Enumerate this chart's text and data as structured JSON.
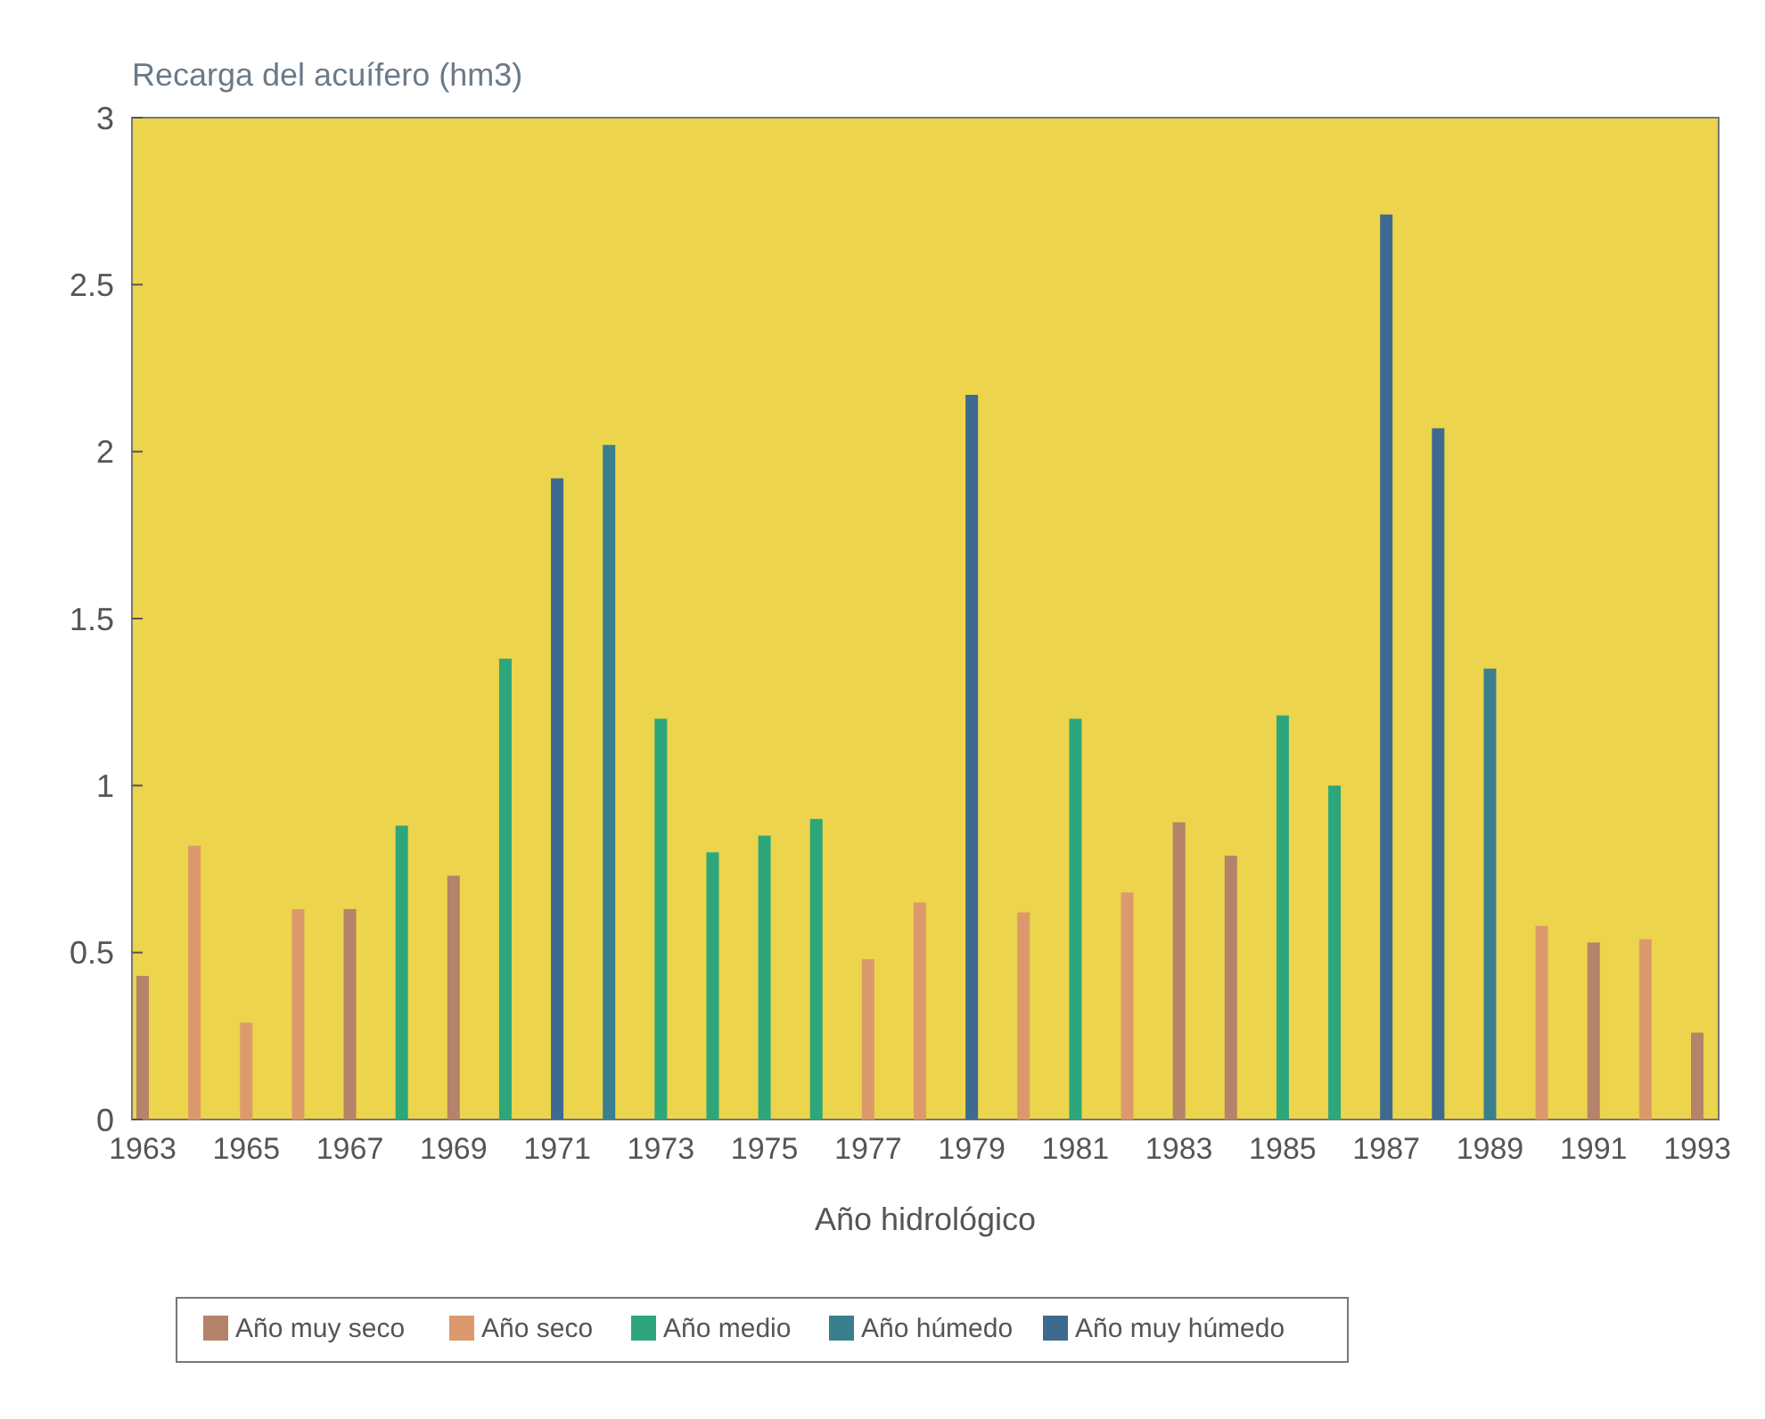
{
  "chart_data": {
    "type": "bar",
    "title": "Recarga del acuífero (hm3)",
    "xlabel": "Año hidrológico",
    "categories": [
      "1963",
      null,
      "1965",
      null,
      "1967",
      null,
      "1969",
      null,
      "1971",
      null,
      "1973",
      null,
      "1975",
      null,
      "1977",
      null,
      "1979",
      null,
      "1981",
      null,
      "1983",
      null,
      "1985",
      null,
      "1987",
      null,
      "1989",
      null,
      "1991",
      null,
      "1993"
    ],
    "series": [
      {
        "name": "Año muy seco",
        "color": "#b3836a",
        "values": [
          0.43,
          null,
          null,
          null,
          0.63,
          null,
          0.73,
          null,
          null,
          null,
          null,
          null,
          null,
          null,
          null,
          null,
          null,
          null,
          null,
          null,
          0.89,
          0.79,
          null,
          null,
          null,
          null,
          null,
          null,
          0.53,
          null,
          0.26
        ]
      },
      {
        "name": "Año seco",
        "color": "#dc9a6c",
        "values": [
          null,
          0.82,
          0.29,
          0.63,
          null,
          null,
          null,
          null,
          null,
          null,
          null,
          null,
          null,
          null,
          0.48,
          0.65,
          null,
          0.62,
          null,
          0.68,
          null,
          null,
          null,
          null,
          null,
          null,
          null,
          0.58,
          null,
          0.54,
          null
        ]
      },
      {
        "name": "Año medio",
        "color": "#2ea67c",
        "values": [
          null,
          null,
          null,
          null,
          null,
          0.88,
          null,
          1.38,
          null,
          null,
          1.2,
          0.8,
          0.85,
          0.9,
          null,
          null,
          null,
          null,
          1.2,
          null,
          null,
          null,
          1.21,
          1.0,
          null,
          null,
          null,
          null,
          null,
          null,
          null
        ]
      },
      {
        "name": "Año húmedo",
        "color": "#3a7f8e",
        "values": [
          null,
          null,
          null,
          null,
          null,
          null,
          null,
          null,
          null,
          2.02,
          null,
          null,
          null,
          null,
          null,
          null,
          null,
          null,
          null,
          null,
          null,
          null,
          null,
          null,
          null,
          null,
          1.35,
          null,
          null,
          null,
          null
        ]
      },
      {
        "name": "Año muy húmedo",
        "color": "#3f6a8f",
        "values": [
          null,
          null,
          null,
          null,
          null,
          null,
          null,
          null,
          1.92,
          null,
          null,
          null,
          null,
          null,
          null,
          null,
          2.17,
          null,
          null,
          null,
          null,
          null,
          null,
          null,
          2.71,
          2.07,
          null,
          null,
          null,
          null,
          null
        ]
      }
    ],
    "ylim": [
      0,
      3
    ],
    "yticks": [
      0,
      0.5,
      1,
      1.5,
      2,
      2.5,
      3
    ],
    "grid": false,
    "legend": "bottom"
  }
}
